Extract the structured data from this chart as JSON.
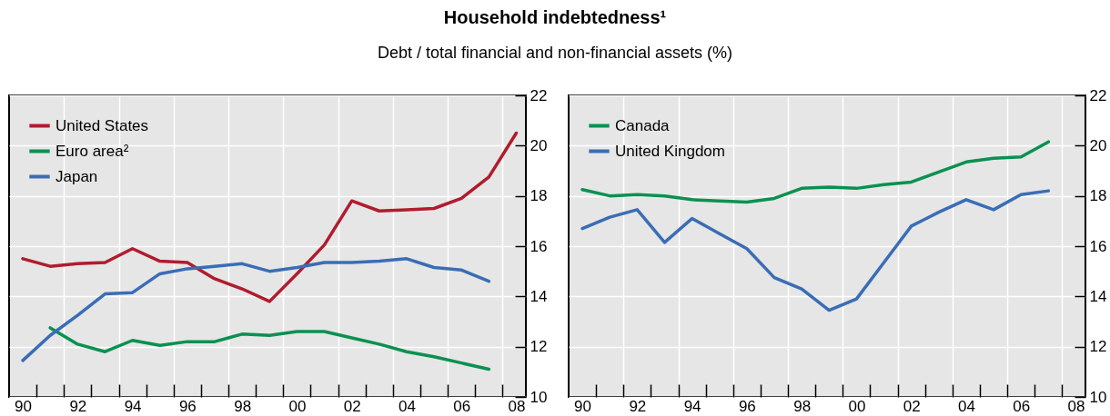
{
  "chart_data": [
    {
      "type": "line",
      "title": "Household indebtedness¹",
      "subtitle": "Debt / total financial and non-financial assets (%)",
      "x": [
        1990,
        1991,
        1992,
        1993,
        1994,
        1995,
        1996,
        1997,
        1998,
        1999,
        2000,
        2001,
        2002,
        2003,
        2004,
        2005,
        2006,
        2007,
        2008
      ],
      "series": [
        {
          "name": "United States",
          "color": "#b01c2e",
          "values": [
            15.5,
            15.2,
            15.3,
            15.35,
            15.9,
            15.4,
            15.35,
            14.7,
            14.3,
            13.8,
            14.9,
            16.05,
            17.8,
            17.4,
            17.45,
            17.5,
            17.9,
            18.75,
            20.5
          ]
        },
        {
          "name": "Euro area²",
          "color": "#0a9150",
          "values": [
            null,
            12.75,
            12.1,
            11.8,
            12.25,
            12.05,
            12.2,
            12.2,
            12.5,
            12.45,
            12.6,
            12.6,
            12.35,
            12.1,
            11.8,
            11.6,
            11.35,
            11.1,
            null
          ]
        },
        {
          "name": "Japan",
          "color": "#3a6db5",
          "values": [
            11.45,
            12.45,
            13.25,
            14.1,
            14.15,
            14.9,
            15.1,
            15.2,
            15.3,
            15.0,
            15.15,
            15.35,
            15.35,
            15.4,
            15.5,
            15.15,
            15.05,
            14.6,
            null
          ]
        }
      ],
      "xlim": [
        1989.5,
        2008.35
      ],
      "xticks": [
        {
          "value": 1990,
          "label": "90"
        },
        {
          "value": 1992,
          "label": "92"
        },
        {
          "value": 1994,
          "label": "94"
        },
        {
          "value": 1996,
          "label": "96"
        },
        {
          "value": 1998,
          "label": "98"
        },
        {
          "value": 2000,
          "label": "00"
        },
        {
          "value": 2002,
          "label": "02"
        },
        {
          "value": 2004,
          "label": "04"
        },
        {
          "value": 2006,
          "label": "06"
        },
        {
          "value": 2008,
          "label": "08"
        },
        {
          "value": 1990.5,
          "label": null
        },
        {
          "value": 1991.5,
          "label": null
        },
        {
          "value": 1992.5,
          "label": null
        },
        {
          "value": 1993.5,
          "label": null
        },
        {
          "value": 1994.5,
          "label": null
        },
        {
          "value": 1995.5,
          "label": null
        },
        {
          "value": 1996.5,
          "label": null
        },
        {
          "value": 1997.5,
          "label": null
        },
        {
          "value": 1998.5,
          "label": null
        },
        {
          "value": 1999.5,
          "label": null
        },
        {
          "value": 2000.5,
          "label": null
        },
        {
          "value": 2001.5,
          "label": null
        },
        {
          "value": 2002.5,
          "label": null
        },
        {
          "value": 2003.5,
          "label": null
        },
        {
          "value": 2004.5,
          "label": null
        },
        {
          "value": 2005.5,
          "label": null
        },
        {
          "value": 2006.5,
          "label": null
        },
        {
          "value": 2007.5,
          "label": null
        }
      ],
      "ylim": [
        10,
        22
      ],
      "yticks": [
        10,
        12,
        14,
        16,
        18,
        20,
        22
      ],
      "grid": true,
      "legend": "top left"
    },
    {
      "type": "line",
      "x": [
        1990,
        1991,
        1992,
        1993,
        1994,
        1995,
        1996,
        1997,
        1998,
        1999,
        2000,
        2001,
        2002,
        2003,
        2004,
        2005,
        2006,
        2007
      ],
      "series": [
        {
          "name": "Canada",
          "color": "#0a9150",
          "values": [
            18.25,
            18.0,
            18.05,
            18.0,
            17.85,
            17.8,
            17.75,
            17.9,
            18.3,
            18.35,
            18.3,
            18.45,
            18.55,
            18.95,
            19.35,
            19.5,
            19.55,
            20.15
          ]
        },
        {
          "name": "United Kingdom",
          "color": "#3a6db5",
          "values": [
            16.7,
            17.15,
            17.45,
            16.15,
            17.1,
            16.5,
            15.9,
            14.75,
            14.3,
            13.45,
            13.9,
            15.35,
            16.8,
            17.35,
            17.85,
            17.45,
            18.05,
            18.2
          ]
        }
      ],
      "xlim": [
        1989.5,
        2008.35
      ],
      "xticks": [
        {
          "value": 1990,
          "label": "90"
        },
        {
          "value": 1992,
          "label": "92"
        },
        {
          "value": 1994,
          "label": "94"
        },
        {
          "value": 1996,
          "label": "96"
        },
        {
          "value": 1998,
          "label": "98"
        },
        {
          "value": 2000,
          "label": "00"
        },
        {
          "value": 2002,
          "label": "02"
        },
        {
          "value": 2004,
          "label": "04"
        },
        {
          "value": 2006,
          "label": "06"
        },
        {
          "value": 2008,
          "label": "08"
        },
        {
          "value": 1990.5,
          "label": null
        },
        {
          "value": 1991.5,
          "label": null
        },
        {
          "value": 1992.5,
          "label": null
        },
        {
          "value": 1993.5,
          "label": null
        },
        {
          "value": 1994.5,
          "label": null
        },
        {
          "value": 1995.5,
          "label": null
        },
        {
          "value": 1996.5,
          "label": null
        },
        {
          "value": 1997.5,
          "label": null
        },
        {
          "value": 1998.5,
          "label": null
        },
        {
          "value": 1999.5,
          "label": null
        },
        {
          "value": 2000.5,
          "label": null
        },
        {
          "value": 2001.5,
          "label": null
        },
        {
          "value": 2002.5,
          "label": null
        },
        {
          "value": 2003.5,
          "label": null
        },
        {
          "value": 2004.5,
          "label": null
        },
        {
          "value": 2005.5,
          "label": null
        },
        {
          "value": 2006.5,
          "label": null
        },
        {
          "value": 2007.5,
          "label": null
        }
      ],
      "ylim": [
        10,
        22
      ],
      "yticks": [
        10,
        12,
        14,
        16,
        18,
        20,
        22
      ],
      "grid": true,
      "legend": "top left"
    }
  ]
}
